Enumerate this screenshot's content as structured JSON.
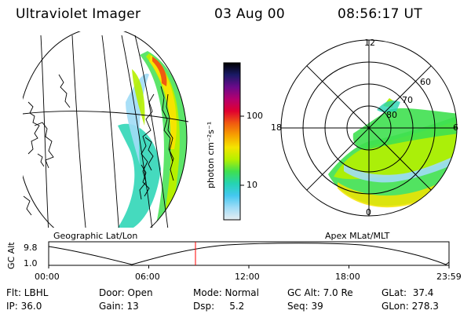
{
  "header": {
    "title": "Ultraviolet Imager",
    "date": "03 Aug 00",
    "time": "08:56:17 UT"
  },
  "left_map": {
    "caption": "Geographic Lat/Lon"
  },
  "right_map": {
    "caption": "Apex MLat/MLT",
    "mlt_labels": {
      "top": "12",
      "left": "18",
      "right": "6",
      "bottom": "0"
    },
    "lat_labels": [
      "60",
      "70",
      "80"
    ]
  },
  "colorbar": {
    "unit": "photon cm⁻²s⁻¹",
    "ticks": [
      "100",
      "10"
    ],
    "colors": [
      "#000000",
      "#1a1a66",
      "#6a0a8a",
      "#b4006e",
      "#e00030",
      "#f05a10",
      "#f7a100",
      "#f5e400",
      "#b5f000",
      "#3fe050",
      "#25d3b3",
      "#44c8f0",
      "#a0dcf6",
      "#e6eef2"
    ]
  },
  "timeline": {
    "ylabel": "GC Alt",
    "ymax": "9.8",
    "ymin": "1.0",
    "ticks": [
      "00:00",
      "06:00",
      "12:00",
      "18:00",
      "23:59"
    ],
    "current_time": "08:56:17",
    "marker_color": "#ff0000"
  },
  "footer": {
    "col1": [
      "Flt: LBHL",
      "IP: 36.0"
    ],
    "col2": [
      "Door: Open",
      "Gain: 13"
    ],
    "col3": [
      "Mode: Normal",
      "Dsp:     5.2"
    ],
    "col4": [
      "GC Alt: 7.0 Re",
      "Seq: 39"
    ],
    "col5": [
      "GLat:  37.4",
      "GLon: 278.3"
    ]
  }
}
